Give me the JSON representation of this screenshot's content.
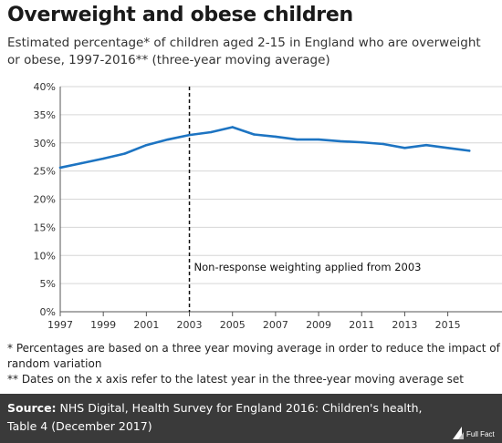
{
  "header": {
    "title": "Overweight and obese children",
    "subtitle": "Estimated percentage* of children aged 2-15 in England who are overweight or obese, 1997-2016** (three-year moving average)"
  },
  "chart_data": {
    "type": "line",
    "x": [
      1997,
      1998,
      1999,
      2000,
      2001,
      2002,
      2003,
      2004,
      2005,
      2006,
      2007,
      2008,
      2009,
      2010,
      2011,
      2012,
      2013,
      2014,
      2015,
      2016
    ],
    "series": [
      {
        "values": [
          25.6,
          26.4,
          27.2,
          28.1,
          29.6,
          30.6,
          31.4,
          31.9,
          32.8,
          31.5,
          31.1,
          30.6,
          30.6,
          30.3,
          30.1,
          29.8,
          29.1,
          29.6,
          29.1,
          28.6
        ],
        "color": "#1d74c2"
      }
    ],
    "xticks": [
      "1997",
      "1999",
      "2001",
      "2003",
      "2005",
      "2007",
      "2009",
      "2011",
      "2013",
      "2015"
    ],
    "yticks": [
      "0%",
      "5%",
      "10%",
      "15%",
      "20%",
      "25%",
      "30%",
      "35%",
      "40%"
    ],
    "xlim": [
      1997,
      2016.5
    ],
    "ylim": [
      0,
      40
    ],
    "grid": "horizontal",
    "annotation": {
      "x": 2003,
      "label": "Non-response weighting applied from 2003",
      "style": "dashed"
    }
  },
  "footnotes": [
    "* Percentages are based on a three year moving average in order to reduce the impact of random variation",
    "** Dates on the x axis refer to the latest year in the three-year moving average set"
  ],
  "source": {
    "label": "Source:",
    "text": "NHS Digital, Health Survey for England 2016: Children's health, Table 4 (December 2017)"
  },
  "logo": {
    "text": "Full Fact",
    "icon": "full-fact-logo-icon"
  },
  "colors": {
    "line": "#1d74c2",
    "grid": "#d6d6d6",
    "source_bg": "#3a3a3a"
  }
}
